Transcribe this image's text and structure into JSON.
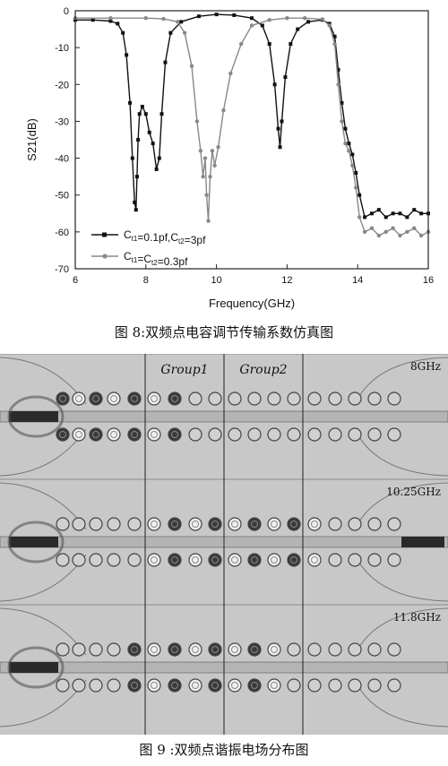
{
  "chart_data": {
    "type": "line",
    "xlabel": "Frequency(GHz)",
    "ylabel": "S21(dB)",
    "xlim": [
      6,
      16
    ],
    "ylim": [
      -70,
      0
    ],
    "x_ticks": [
      "6",
      "8",
      "10",
      "12",
      "14",
      "16"
    ],
    "y_ticks": [
      "0",
      "-10",
      "-20",
      "-30",
      "-40",
      "-50",
      "-60",
      "-70"
    ],
    "grid": false,
    "legend_position": "bottom-left",
    "series": [
      {
        "name": "Ct1=0.1pf,Ct2=3pf",
        "legend": {
          "p1": "C",
          "s1": "t1",
          "p2": "=0.1pf,C",
          "s2": "t2",
          "p3": "=3pf"
        },
        "color": "#111111",
        "x": [
          6.0,
          6.5,
          7.0,
          7.2,
          7.35,
          7.45,
          7.55,
          7.62,
          7.68,
          7.72,
          7.75,
          7.78,
          7.82,
          7.9,
          8.0,
          8.1,
          8.2,
          8.3,
          8.38,
          8.45,
          8.55,
          8.7,
          9.0,
          9.5,
          10.0,
          10.5,
          11.0,
          11.3,
          11.5,
          11.65,
          11.75,
          11.8,
          11.85,
          11.95,
          12.1,
          12.3,
          12.6,
          13.0,
          13.2,
          13.35,
          13.45,
          13.55,
          13.65,
          13.75,
          13.85,
          13.95,
          14.05,
          14.2,
          14.4,
          14.6,
          14.8,
          15.0,
          15.2,
          15.4,
          15.6,
          15.8,
          16.0
        ],
        "y": [
          -2.5,
          -2.5,
          -2.8,
          -3.5,
          -6,
          -12,
          -25,
          -40,
          -52,
          -54,
          -45,
          -35,
          -28,
          -26,
          -28,
          -33,
          -36,
          -43,
          -40,
          -28,
          -14,
          -6,
          -3,
          -1.5,
          -1,
          -1.2,
          -2,
          -4,
          -9,
          -20,
          -32,
          -37,
          -30,
          -18,
          -9,
          -5,
          -3,
          -2.5,
          -3.5,
          -7,
          -16,
          -25,
          -32,
          -36,
          -39,
          -44,
          -50,
          -56,
          -55,
          -54,
          -56,
          -55,
          -55,
          -56,
          -54,
          -55,
          -55
        ]
      },
      {
        "name": "Ct1=Ct2=0.3pf",
        "legend": {
          "p1": "C",
          "s1": "t1",
          "p2": "=C",
          "s2": "t2",
          "p3": "=0.3pf"
        },
        "color": "#888888",
        "x": [
          6.0,
          7.0,
          8.0,
          8.5,
          8.9,
          9.1,
          9.3,
          9.45,
          9.55,
          9.62,
          9.68,
          9.72,
          9.77,
          9.82,
          9.88,
          9.95,
          10.05,
          10.2,
          10.4,
          10.7,
          11.0,
          11.5,
          12.0,
          12.5,
          13.0,
          13.2,
          13.35,
          13.45,
          13.55,
          13.65,
          13.75,
          13.85,
          13.95,
          14.05,
          14.2,
          14.4,
          14.6,
          14.8,
          15.0,
          15.2,
          15.4,
          15.6,
          15.8,
          16.0
        ],
        "y": [
          -2,
          -2,
          -2,
          -2.2,
          -3,
          -6,
          -15,
          -30,
          -38,
          -45,
          -40,
          -50,
          -57,
          -45,
          -38,
          -42,
          -37,
          -27,
          -17,
          -9,
          -4,
          -2.5,
          -2,
          -2,
          -2.3,
          -4,
          -9,
          -20,
          -30,
          -36,
          -38,
          -42,
          -48,
          -56,
          -60,
          -59,
          -61,
          -60,
          -59,
          -61,
          -60,
          -59,
          -61,
          -60
        ]
      }
    ]
  },
  "captions": {
    "fig8": "图 8:双频点电容调节传输系数仿真图",
    "fig9": "图 9 :双频点谐振电场分布图"
  },
  "field_plot": {
    "group1_label": "Group1",
    "group2_label": "Group2",
    "panels": [
      {
        "freq_label": "8GHz"
      },
      {
        "freq_label": "10.25GHz"
      },
      {
        "freq_label": "11.8GHz"
      }
    ]
  }
}
